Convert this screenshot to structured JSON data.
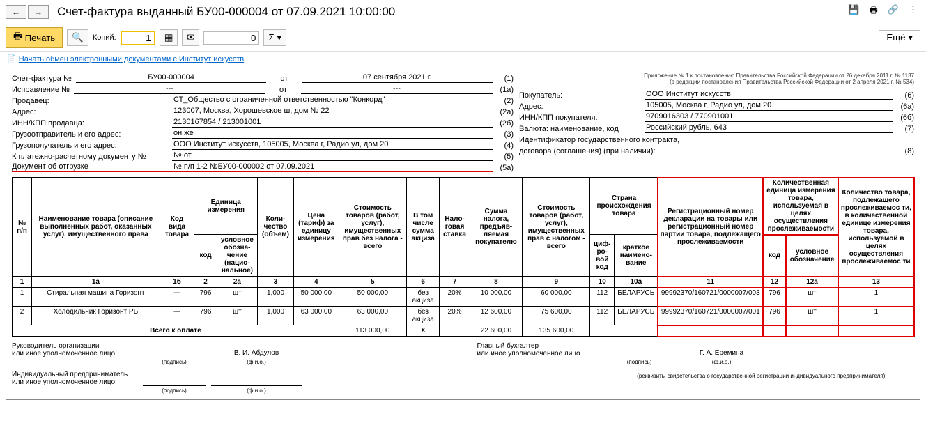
{
  "title": "Счет-фактура выданный БУ00-000004 от 07.09.2021 10:00:00",
  "toolbar": {
    "print": "Печать",
    "copies_label": "Копий:",
    "copies_value": "1",
    "number_value": "0",
    "more": "Ещё"
  },
  "link": "Начать обмен электронными документами с Институт искусств",
  "hdr": {
    "invoice_label": "Счет-фактура №",
    "invoice_no": "БУ00-000004",
    "from": "от",
    "invoice_date": "07 сентября 2021 г.",
    "correction_label": "Исправление №",
    "correction_no": "---",
    "correction_date": "---",
    "seller_label": "Продавец:",
    "seller": "СТ_Общество с ограниченной ответственностью \"Конкорд\"",
    "addr_label": "Адрес:",
    "seller_addr": "123007, Москва, Хорошевское ш, дом № 22",
    "inn_seller_label": "ИНН/КПП продавца:",
    "inn_seller": "2130167854 / 213001001",
    "shipper_label": "Грузоотправитель и его адрес:",
    "shipper": "он же",
    "consignee_label": "Грузополучатель и его адрес:",
    "consignee": "ООО Институт искусств, 105005, Москва г, Радио ул, дом 20",
    "payment_doc_label": "К платежно-расчетному документу №",
    "payment_doc": "№ от",
    "shipment_doc_label": "Документ об отгрузке",
    "shipment_doc": "№ п/п 1-2 №БУ00-000002 от 07.09.2021",
    "buyer_label": "Покупатель:",
    "buyer": "ООО Институт искусств",
    "buyer_addr": "105005, Москва г, Радио ул, дом 20",
    "inn_buyer_label": "ИНН/КПП покупателя:",
    "inn_buyer": "9709016303 / 770901001",
    "currency_label": "Валюта: наименование, код",
    "currency": "Российский рубль, 643",
    "contract_id_label": "Идентификатор государственного контракта,",
    "contract_id2": "договора (соглашения) (при наличии):",
    "reg1": "Приложение № 1 к постановлению Правительства Российской Федерации от 26 декабря 2011 г. № 1137",
    "reg2": "(в редакции постановления Правительства Российской Федерации от 2 апреля 2021 г. № 534)"
  },
  "cols": {
    "c1": "№ п/п",
    "c1a": "Наименование товара (описание выполненных работ, оказанных услуг), имущественного права",
    "c1b": "Код вида товара",
    "unit": "Единица измерения",
    "c2": "код",
    "c2a": "условное обозна-чение (нацио-нальное)",
    "c3": "Коли-чество (объем)",
    "c4": "Цена (тариф) за единицу измерения",
    "c5": "Стоимость товаров (работ, услуг), имущественных прав без налога - всего",
    "c6": "В том числе сумма акциза",
    "c7": "Нало-говая ставка",
    "c8": "Сумма налога, предъяв-ляемая покупателю",
    "c9": "Стоимость товаров (работ, услуг), имущественных прав с налогом - всего",
    "country": "Страна происхождения товара",
    "c10": "циф-ро-вой код",
    "c10a": "краткое наимено-вание",
    "c11": "Регистрационный номер декларации на товары или регистрационный номер партии товара, подлежащего прослеживаемости",
    "qunit": "Количественная единица измерения товара, используемая в целях осуществления прослеживаемости",
    "c12": "код",
    "c12a": "условное обозначение",
    "c13": "Количество товара, подлежащего прослеживаемос ти, в количественной единице измерения товара, используемой в целях осуществления прослеживаемос ти"
  },
  "nums": [
    "1",
    "1а",
    "1б",
    "2",
    "2а",
    "3",
    "4",
    "5",
    "6",
    "7",
    "8",
    "9",
    "10",
    "10а",
    "11",
    "12",
    "12а",
    "13"
  ],
  "rows": [
    {
      "n": "1",
      "name": "Стиральная машина Горизонт",
      "kind": "---",
      "ucode": "796",
      "uname": "шт",
      "qty": "1,000",
      "price": "50 000,00",
      "cost": "50 000,00",
      "excise": "без акциза",
      "rate": "20%",
      "tax": "10 000,00",
      "total": "60 000,00",
      "ccode": "112",
      "cname": "БЕЛАРУСЬ",
      "reg": "99992370/160721/0000007/003",
      "tcode": "796",
      "tname": "шт",
      "tqty": "1"
    },
    {
      "n": "2",
      "name": "Холодильник Горизонт РБ",
      "kind": "---",
      "ucode": "796",
      "uname": "шт",
      "qty": "1,000",
      "price": "63 000,00",
      "cost": "63 000,00",
      "excise": "без акциза",
      "rate": "20%",
      "tax": "12 600,00",
      "total": "75 600,00",
      "ccode": "112",
      "cname": "БЕЛАРУСЬ",
      "reg": "99992370/160721/0000007/001",
      "tcode": "796",
      "tname": "шт",
      "tqty": "1"
    }
  ],
  "totals": {
    "label": "Всего к оплате",
    "cost": "113 000,00",
    "x": "Х",
    "tax": "22 600,00",
    "total": "135 600,00"
  },
  "sign": {
    "mgr": "Руководитель организации",
    "auth": "или иное уполномоченное лицо",
    "mgr_name": "В. И. Абдулов",
    "acc": "Главный бухгалтер",
    "acc_name": "Г. А. Еремина",
    "ip": "Индивидуальный предприниматель",
    "podpis": "(подпись)",
    "fio": "(ф.и.о.)",
    "rekv": "(реквизиты свидетельства о государственной регистрации индивидуального предпринимателя)"
  }
}
